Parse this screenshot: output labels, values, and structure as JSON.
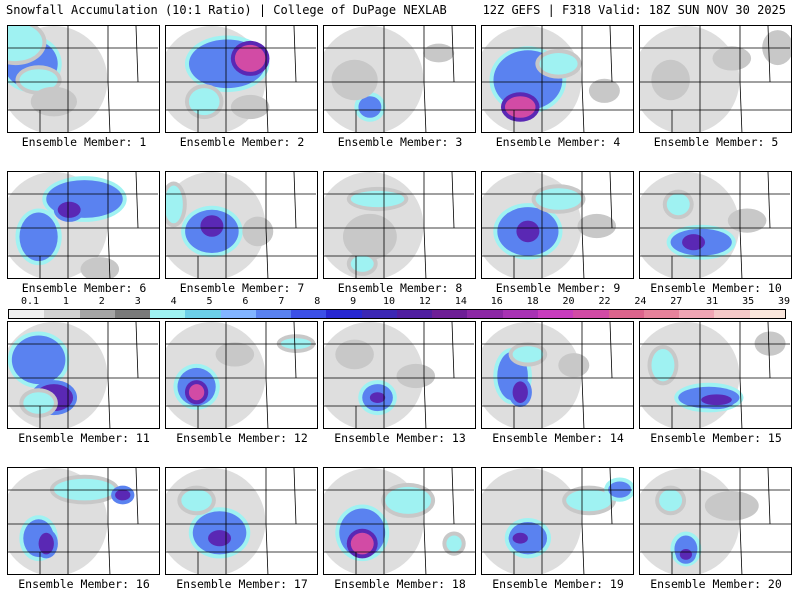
{
  "header": {
    "left": "Snowfall Accumulation (10:1 Ratio) | College of DuPage NEXLAB",
    "right": "12Z GEFS | F318 Valid: 18Z SUN NOV 30 2025"
  },
  "panels": [
    {
      "label": "Ensemble Member: 1",
      "blobs": [
        [
          0.15,
          0.35,
          0.35,
          0.45,
          3
        ],
        [
          0.05,
          0.15,
          0.35,
          0.35,
          2
        ],
        [
          0.2,
          0.5,
          0.25,
          0.2,
          2
        ],
        [
          0.3,
          0.7,
          0.25,
          0.2,
          1
        ]
      ]
    },
    {
      "label": "Ensemble Member: 2",
      "blobs": [
        [
          0.4,
          0.35,
          0.5,
          0.45,
          3
        ],
        [
          0.55,
          0.3,
          0.2,
          0.25,
          5
        ],
        [
          0.25,
          0.7,
          0.2,
          0.25,
          2
        ],
        [
          0.55,
          0.75,
          0.2,
          0.15,
          1
        ]
      ]
    },
    {
      "label": "Ensemble Member: 3",
      "blobs": [
        [
          0.3,
          0.75,
          0.15,
          0.2,
          3
        ],
        [
          0.2,
          0.5,
          0.25,
          0.3,
          1
        ],
        [
          0.75,
          0.25,
          0.15,
          0.1,
          1
        ]
      ]
    },
    {
      "label": "Ensemble Member: 4",
      "blobs": [
        [
          0.3,
          0.5,
          0.45,
          0.55,
          3
        ],
        [
          0.25,
          0.75,
          0.2,
          0.2,
          5
        ],
        [
          0.5,
          0.35,
          0.25,
          0.2,
          2
        ],
        [
          0.8,
          0.6,
          0.15,
          0.15,
          1
        ]
      ]
    },
    {
      "label": "Ensemble Member: 5",
      "blobs": [
        [
          0.2,
          0.5,
          0.2,
          0.3,
          1
        ],
        [
          0.6,
          0.3,
          0.2,
          0.15,
          1
        ],
        [
          0.9,
          0.2,
          0.15,
          0.25,
          1
        ]
      ]
    },
    {
      "label": "Ensemble Member: 6",
      "blobs": [
        [
          0.5,
          0.25,
          0.5,
          0.35,
          3
        ],
        [
          0.2,
          0.6,
          0.25,
          0.45,
          3
        ],
        [
          0.4,
          0.35,
          0.15,
          0.15,
          4
        ],
        [
          0.6,
          0.9,
          0.2,
          0.15,
          1
        ]
      ]
    },
    {
      "label": "Ensemble Member: 7",
      "blobs": [
        [
          0.3,
          0.55,
          0.35,
          0.4,
          3
        ],
        [
          0.05,
          0.3,
          0.12,
          0.35,
          2
        ],
        [
          0.3,
          0.5,
          0.15,
          0.2,
          4
        ],
        [
          0.6,
          0.55,
          0.15,
          0.2,
          1
        ]
      ]
    },
    {
      "label": "Ensemble Member: 8",
      "blobs": [
        [
          0.3,
          0.6,
          0.3,
          0.35,
          1
        ],
        [
          0.35,
          0.25,
          0.35,
          0.15,
          2
        ],
        [
          0.25,
          0.85,
          0.15,
          0.15,
          2
        ]
      ]
    },
    {
      "label": "Ensemble Member: 9",
      "blobs": [
        [
          0.3,
          0.55,
          0.4,
          0.45,
          3
        ],
        [
          0.3,
          0.55,
          0.15,
          0.2,
          4
        ],
        [
          0.5,
          0.25,
          0.3,
          0.2,
          2
        ],
        [
          0.75,
          0.5,
          0.2,
          0.15,
          1
        ]
      ]
    },
    {
      "label": "Ensemble Member: 10",
      "blobs": [
        [
          0.4,
          0.65,
          0.4,
          0.25,
          3
        ],
        [
          0.35,
          0.65,
          0.15,
          0.15,
          4
        ],
        [
          0.25,
          0.3,
          0.15,
          0.2,
          2
        ],
        [
          0.7,
          0.45,
          0.2,
          0.15,
          1
        ]
      ]
    },
    {
      "label": "Ensemble Member: 11",
      "blobs": [
        [
          0.2,
          0.35,
          0.35,
          0.45,
          3
        ],
        [
          0.3,
          0.7,
          0.25,
          0.25,
          4
        ],
        [
          0.2,
          0.75,
          0.2,
          0.2,
          2
        ]
      ]
    },
    {
      "label": "Ensemble Member: 12",
      "blobs": [
        [
          0.2,
          0.6,
          0.25,
          0.35,
          3
        ],
        [
          0.2,
          0.65,
          0.1,
          0.15,
          5
        ],
        [
          0.45,
          0.3,
          0.2,
          0.15,
          1
        ],
        [
          0.85,
          0.2,
          0.2,
          0.1,
          2
        ]
      ]
    },
    {
      "label": "Ensemble Member: 13",
      "blobs": [
        [
          0.35,
          0.7,
          0.2,
          0.25,
          3
        ],
        [
          0.35,
          0.7,
          0.1,
          0.1,
          4
        ],
        [
          0.2,
          0.3,
          0.2,
          0.2,
          1
        ],
        [
          0.6,
          0.5,
          0.2,
          0.15,
          1
        ]
      ]
    },
    {
      "label": "Ensemble Member: 14",
      "blobs": [
        [
          0.2,
          0.5,
          0.2,
          0.45,
          3
        ],
        [
          0.25,
          0.65,
          0.1,
          0.2,
          4
        ],
        [
          0.3,
          0.3,
          0.2,
          0.15,
          2
        ],
        [
          0.6,
          0.4,
          0.15,
          0.15,
          1
        ]
      ]
    },
    {
      "label": "Ensemble Member: 15",
      "blobs": [
        [
          0.45,
          0.7,
          0.4,
          0.2,
          3
        ],
        [
          0.5,
          0.72,
          0.2,
          0.1,
          4
        ],
        [
          0.15,
          0.4,
          0.15,
          0.3,
          2
        ],
        [
          0.85,
          0.2,
          0.15,
          0.15,
          1
        ]
      ]
    },
    {
      "label": "Ensemble Member: 16",
      "blobs": [
        [
          0.2,
          0.65,
          0.2,
          0.35,
          3
        ],
        [
          0.25,
          0.7,
          0.1,
          0.2,
          4
        ],
        [
          0.5,
          0.2,
          0.4,
          0.2,
          2
        ],
        [
          0.75,
          0.25,
          0.1,
          0.1,
          4
        ]
      ]
    },
    {
      "label": "Ensemble Member: 17",
      "blobs": [
        [
          0.35,
          0.6,
          0.35,
          0.4,
          3
        ],
        [
          0.35,
          0.65,
          0.15,
          0.15,
          4
        ],
        [
          0.2,
          0.3,
          0.2,
          0.2,
          2
        ]
      ]
    },
    {
      "label": "Ensemble Member: 18",
      "blobs": [
        [
          0.25,
          0.6,
          0.3,
          0.45,
          3
        ],
        [
          0.25,
          0.7,
          0.15,
          0.2,
          5
        ],
        [
          0.55,
          0.3,
          0.3,
          0.25,
          2
        ],
        [
          0.85,
          0.7,
          0.1,
          0.15,
          2
        ]
      ]
    },
    {
      "label": "Ensemble Member: 19",
      "blobs": [
        [
          0.3,
          0.65,
          0.25,
          0.3,
          3
        ],
        [
          0.25,
          0.65,
          0.1,
          0.1,
          4
        ],
        [
          0.7,
          0.3,
          0.3,
          0.2,
          2
        ],
        [
          0.9,
          0.2,
          0.15,
          0.15,
          3
        ]
      ]
    },
    {
      "label": "Ensemble Member: 20",
      "blobs": [
        [
          0.3,
          0.75,
          0.15,
          0.25,
          3
        ],
        [
          0.3,
          0.8,
          0.08,
          0.1,
          4
        ],
        [
          0.6,
          0.35,
          0.3,
          0.2,
          1
        ],
        [
          0.2,
          0.3,
          0.15,
          0.2,
          2
        ]
      ]
    }
  ],
  "legend": {
    "values": [
      "0.1",
      "1",
      "2",
      "3",
      "4",
      "5",
      "6",
      "7",
      "8",
      "9",
      "10",
      "12",
      "14",
      "16",
      "18",
      "20",
      "22",
      "24",
      "27",
      "31",
      "35",
      "39"
    ],
    "colors": [
      "#f0f0f0",
      "#d2d2d2",
      "#a5a5a5",
      "#7a7a7a",
      "#9ff2f2",
      "#6ccfe8",
      "#82b4ff",
      "#5a82f0",
      "#3c50e6",
      "#2828d2",
      "#3c28b4",
      "#501ea0",
      "#6e1e96",
      "#8c28a5",
      "#a832b4",
      "#c83cbe",
      "#d24ba5",
      "#dc648c",
      "#e6829b",
      "#f0a5b4",
      "#f5c8c8",
      "#fae6dc"
    ]
  },
  "level_colors": [
    "#ffffff",
    "#c8c8c8",
    "#9ff2f2",
    "#5a82f0",
    "#5a28b4",
    "#d24ba5"
  ]
}
